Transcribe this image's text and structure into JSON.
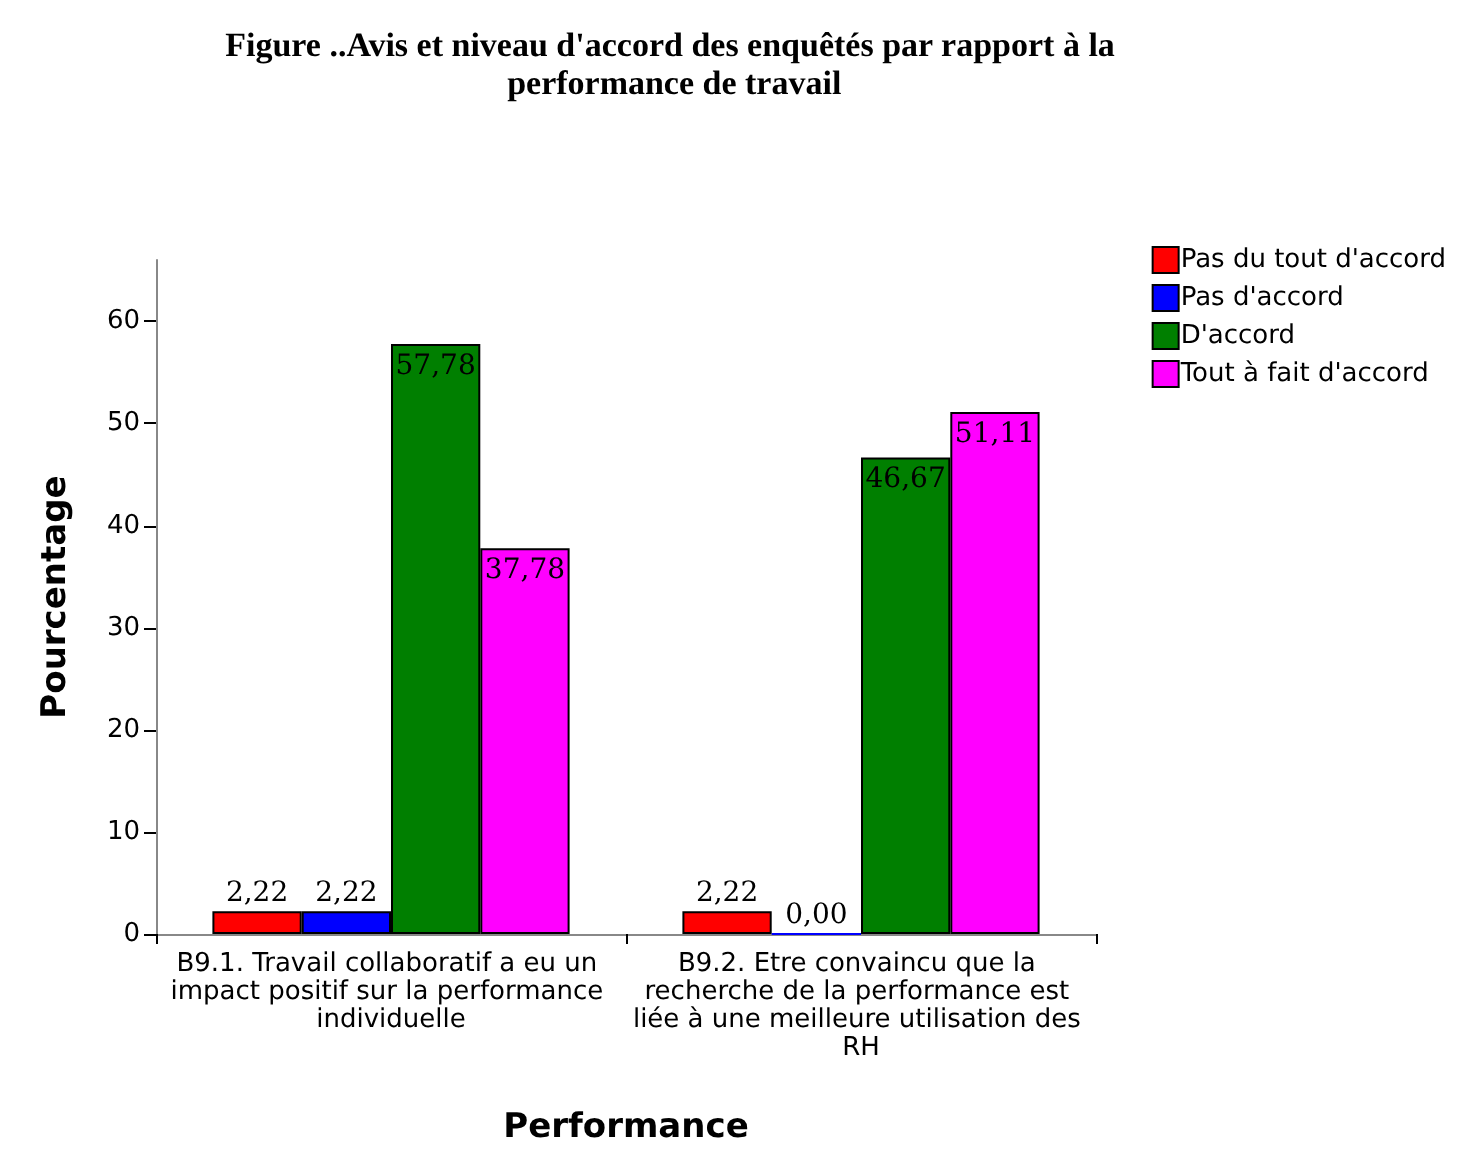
{
  "chart_data": {
    "type": "bar",
    "title": "Figure ..Avis et niveau d'accord des enquêtés par rapport à la performance de travail",
    "xlabel": "Performance",
    "ylabel": "Pourcentage",
    "categories": [
      "B9.1. Travail collaboratif a eu un impact positif sur la performance individuelle",
      "B9.2. Etre convaincu que la recherche de la performance est liée à une meilleure utilisation des RH"
    ],
    "series": [
      {
        "name": "Pas du tout d'accord",
        "color": "#ff0000",
        "values": [
          2.22,
          2.22
        ],
        "value_labels": [
          "2,22",
          "2,22"
        ]
      },
      {
        "name": "Pas d'accord",
        "color": "#0000ff",
        "values": [
          2.22,
          0
        ],
        "value_labels": [
          "2,22",
          "0,00"
        ]
      },
      {
        "name": "D'accord",
        "color": "#007f00",
        "values": [
          57.78,
          46.67
        ],
        "value_labels": [
          "57,78",
          "46,67"
        ]
      },
      {
        "name": "Tout à fait d'accord",
        "color": "#ff00ff",
        "values": [
          37.78,
          51.11
        ],
        "value_labels": [
          "37,78",
          "51,11"
        ]
      }
    ],
    "ylim": [
      0,
      66
    ],
    "yticks": [
      0,
      10,
      20,
      30,
      40,
      50,
      60
    ],
    "grid": false,
    "legend": "top right"
  }
}
